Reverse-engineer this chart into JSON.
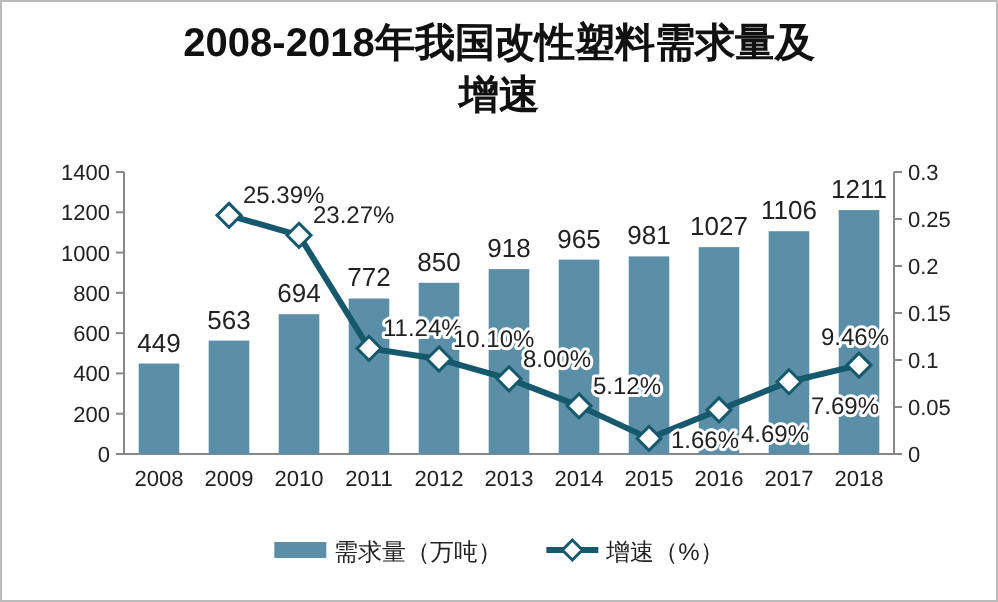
{
  "chart_data": {
    "type": "bar",
    "title": "2008-2018年我国改性塑料需求量及增速",
    "categories": [
      "2008",
      "2009",
      "2010",
      "2011",
      "2012",
      "2013",
      "2014",
      "2015",
      "2016",
      "2017",
      "2018"
    ],
    "series": [
      {
        "name": "需求量（万吨）",
        "color": "#5b8fa8",
        "values": [
          449,
          563,
          694,
          772,
          850,
          918,
          965,
          981,
          1027,
          1106,
          1211
        ],
        "data_labels": true
      },
      {
        "name": "增速（%）",
        "type": "line",
        "axis": "y2",
        "color": "#17596c",
        "marker": "diamond",
        "values": [
          null,
          0.2539,
          0.2327,
          0.1124,
          0.101,
          0.08,
          0.0512,
          0.0166,
          0.0469,
          0.0769,
          0.0946
        ],
        "value_labels": [
          null,
          "25.39%",
          "23.27%",
          "11.24%",
          "10.10%",
          "8.00%",
          "5.12%",
          "1.66%",
          "4.69%",
          "7.69%",
          "9.46%"
        ]
      }
    ],
    "ylim": [
      0,
      1400
    ],
    "yticks": [
      0,
      200,
      400,
      600,
      800,
      1000,
      1200,
      1400
    ],
    "y2lim": [
      0,
      0.3
    ],
    "y2ticks": [
      0,
      0.05,
      0.1,
      0.15,
      0.2,
      0.25,
      0.3
    ],
    "grid": false,
    "legend": "bottom"
  }
}
